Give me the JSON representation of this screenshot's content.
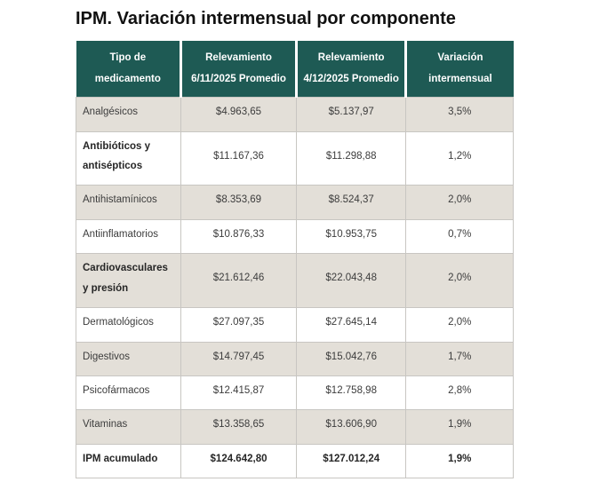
{
  "page_title": "IPM. Variación intermensual por componente",
  "colors": {
    "header_bg": "#1e5a54",
    "row_alt_bg": "#e3dfd8",
    "row_bg": "#ffffff",
    "border": "#c8c6c2",
    "header_text": "#ffffff",
    "body_text": "#3c3c3c"
  },
  "table": {
    "columns": [
      {
        "line1": "Tipo de",
        "line2": "medicamento"
      },
      {
        "line1": "Relevamiento",
        "line2": "6/11/2025 Promedio"
      },
      {
        "line1": "Relevamiento",
        "line2": "4/12/2025 Promedio"
      },
      {
        "line1": "Variación",
        "line2": "intermensual"
      }
    ],
    "rows": [
      {
        "name": "Analgésicos",
        "survey1": "$4.963,65",
        "survey2": "$5.137,97",
        "variation": "3,5%",
        "name_bold": false,
        "row_bold": false
      },
      {
        "name": "Antibióticos y antisépticos",
        "survey1": "$11.167,36",
        "survey2": "$11.298,88",
        "variation": "1,2%",
        "name_bold": true,
        "row_bold": false
      },
      {
        "name": "Antihistamínicos",
        "survey1": "$8.353,69",
        "survey2": "$8.524,37",
        "variation": "2,0%",
        "name_bold": false,
        "row_bold": false
      },
      {
        "name": "Antiinflamatorios",
        "survey1": "$10.876,33",
        "survey2": "$10.953,75",
        "variation": "0,7%",
        "name_bold": false,
        "row_bold": false
      },
      {
        "name": "Cardiovasculares y presión",
        "survey1": "$21.612,46",
        "survey2": "$22.043,48",
        "variation": "2,0%",
        "name_bold": true,
        "row_bold": false
      },
      {
        "name": "Dermatológicos",
        "survey1": "$27.097,35",
        "survey2": "$27.645,14",
        "variation": "2,0%",
        "name_bold": false,
        "row_bold": false
      },
      {
        "name": "Digestivos",
        "survey1": "$14.797,45",
        "survey2": "$15.042,76",
        "variation": "1,7%",
        "name_bold": false,
        "row_bold": false
      },
      {
        "name": "Psicofármacos",
        "survey1": "$12.415,87",
        "survey2": "$12.758,98",
        "variation": "2,8%",
        "name_bold": false,
        "row_bold": false
      },
      {
        "name": "Vitaminas",
        "survey1": "$13.358,65",
        "survey2": "$13.606,90",
        "variation": "1,9%",
        "name_bold": false,
        "row_bold": false
      },
      {
        "name": "IPM acumulado",
        "survey1": "$124.642,80",
        "survey2": "$127.012,24",
        "variation": "1,9%",
        "name_bold": true,
        "row_bold": true
      }
    ]
  },
  "chart_data": {
    "type": "table",
    "title": "IPM. Variación intermensual por componente",
    "columns": [
      "Tipo de medicamento",
      "Relevamiento 6/11/2025 Promedio",
      "Relevamiento 4/12/2025 Promedio",
      "Variación intermensual"
    ],
    "rows": [
      [
        "Analgésicos",
        "$4.963,65",
        "$5.137,97",
        "3,5%"
      ],
      [
        "Antibióticos y antisépticos",
        "$11.167,36",
        "$11.298,88",
        "1,2%"
      ],
      [
        "Antihistamínicos",
        "$8.353,69",
        "$8.524,37",
        "2,0%"
      ],
      [
        "Antiinflamatorios",
        "$10.876,33",
        "$10.953,75",
        "0,7%"
      ],
      [
        "Cardiovasculares y presión",
        "$21.612,46",
        "$22.043,48",
        "2,0%"
      ],
      [
        "Dermatológicos",
        "$27.097,35",
        "$27.645,14",
        "2,0%"
      ],
      [
        "Digestivos",
        "$14.797,45",
        "$15.042,76",
        "1,7%"
      ],
      [
        "Psicofármacos",
        "$12.415,87",
        "$12.758,98",
        "2,8%"
      ],
      [
        "Vitaminas",
        "$13.358,65",
        "$13.606,90",
        "1,9%"
      ],
      [
        "IPM acumulado",
        "$124.642,80",
        "$127.012,24",
        "1,9%"
      ]
    ]
  }
}
